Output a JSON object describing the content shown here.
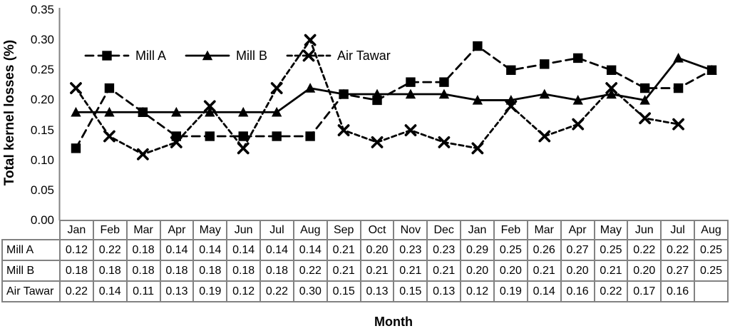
{
  "figure": {
    "y_axis_title": "Total kernel losses (%)",
    "x_axis_title": "Month"
  },
  "y_ticks": [
    "0.35",
    "0.30",
    "0.25",
    "0.20",
    "0.15",
    "0.10",
    "0.05",
    "0.00"
  ],
  "legend": {
    "items": [
      {
        "label": "Mill A",
        "marker": "square",
        "line": "long-dash"
      },
      {
        "label": "Mill B",
        "marker": "triangle",
        "line": "solid"
      },
      {
        "label": "Air Tawar",
        "marker": "x",
        "line": "short-dash"
      }
    ]
  },
  "chart_data": {
    "type": "line",
    "title": "",
    "xlabel": "Month",
    "ylabel": "Total kernel losses (%)",
    "ylim": [
      0,
      0.35
    ],
    "y_tick_step": 0.05,
    "grid": false,
    "legend_position": "top-left-inside",
    "line_color": "#000000",
    "categories": [
      "Jan",
      "Feb",
      "Mar",
      "Apr",
      "May",
      "Jun",
      "Jul",
      "Aug",
      "Sep",
      "Oct",
      "Nov",
      "Dec",
      "Jan",
      "Feb",
      "Mar",
      "Apr",
      "May",
      "Jun",
      "Jul",
      "Aug"
    ],
    "series": [
      {
        "name": "Mill A",
        "marker": "square",
        "line_style": "long-dash",
        "values": [
          0.12,
          0.22,
          0.18,
          0.14,
          0.14,
          0.14,
          0.14,
          0.14,
          0.21,
          0.2,
          0.23,
          0.23,
          0.29,
          0.25,
          0.26,
          0.27,
          0.25,
          0.22,
          0.22,
          0.25
        ]
      },
      {
        "name": "Mill B",
        "marker": "triangle",
        "line_style": "solid",
        "values": [
          0.18,
          0.18,
          0.18,
          0.18,
          0.18,
          0.18,
          0.18,
          0.22,
          0.21,
          0.21,
          0.21,
          0.21,
          0.2,
          0.2,
          0.21,
          0.2,
          0.21,
          0.2,
          0.27,
          0.25
        ]
      },
      {
        "name": "Air Tawar",
        "marker": "x",
        "line_style": "short-dash",
        "values": [
          0.22,
          0.14,
          0.11,
          0.13,
          0.19,
          0.12,
          0.22,
          0.3,
          0.15,
          0.13,
          0.15,
          0.13,
          0.12,
          0.19,
          0.14,
          0.16,
          0.22,
          0.17,
          0.16,
          null
        ]
      }
    ]
  },
  "table": {
    "column_headers": [
      "Jan",
      "Feb",
      "Mar",
      "Apr",
      "May",
      "Jun",
      "Jul",
      "Aug",
      "Sep",
      "Oct",
      "Nov",
      "Dec",
      "Jan",
      "Feb",
      "Mar",
      "Apr",
      "May",
      "Jun",
      "Jul",
      "Aug"
    ],
    "rows": [
      {
        "label": "Mill A",
        "values": [
          "0.12",
          "0.22",
          "0.18",
          "0.14",
          "0.14",
          "0.14",
          "0.14",
          "0.14",
          "0.21",
          "0.20",
          "0.23",
          "0.23",
          "0.29",
          "0.25",
          "0.26",
          "0.27",
          "0.25",
          "0.22",
          "0.22",
          "0.25"
        ]
      },
      {
        "label": "Mill B",
        "values": [
          "0.18",
          "0.18",
          "0.18",
          "0.18",
          "0.18",
          "0.18",
          "0.18",
          "0.22",
          "0.21",
          "0.21",
          "0.21",
          "0.21",
          "0.20",
          "0.20",
          "0.21",
          "0.20",
          "0.21",
          "0.20",
          "0.27",
          "0.25"
        ]
      },
      {
        "label": "Air Tawar",
        "values": [
          "0.22",
          "0.14",
          "0.11",
          "0.13",
          "0.19",
          "0.12",
          "0.22",
          "0.30",
          "0.15",
          "0.13",
          "0.15",
          "0.13",
          "0.12",
          "0.19",
          "0.14",
          "0.16",
          "0.22",
          "0.17",
          "0.16",
          ""
        ]
      }
    ]
  }
}
